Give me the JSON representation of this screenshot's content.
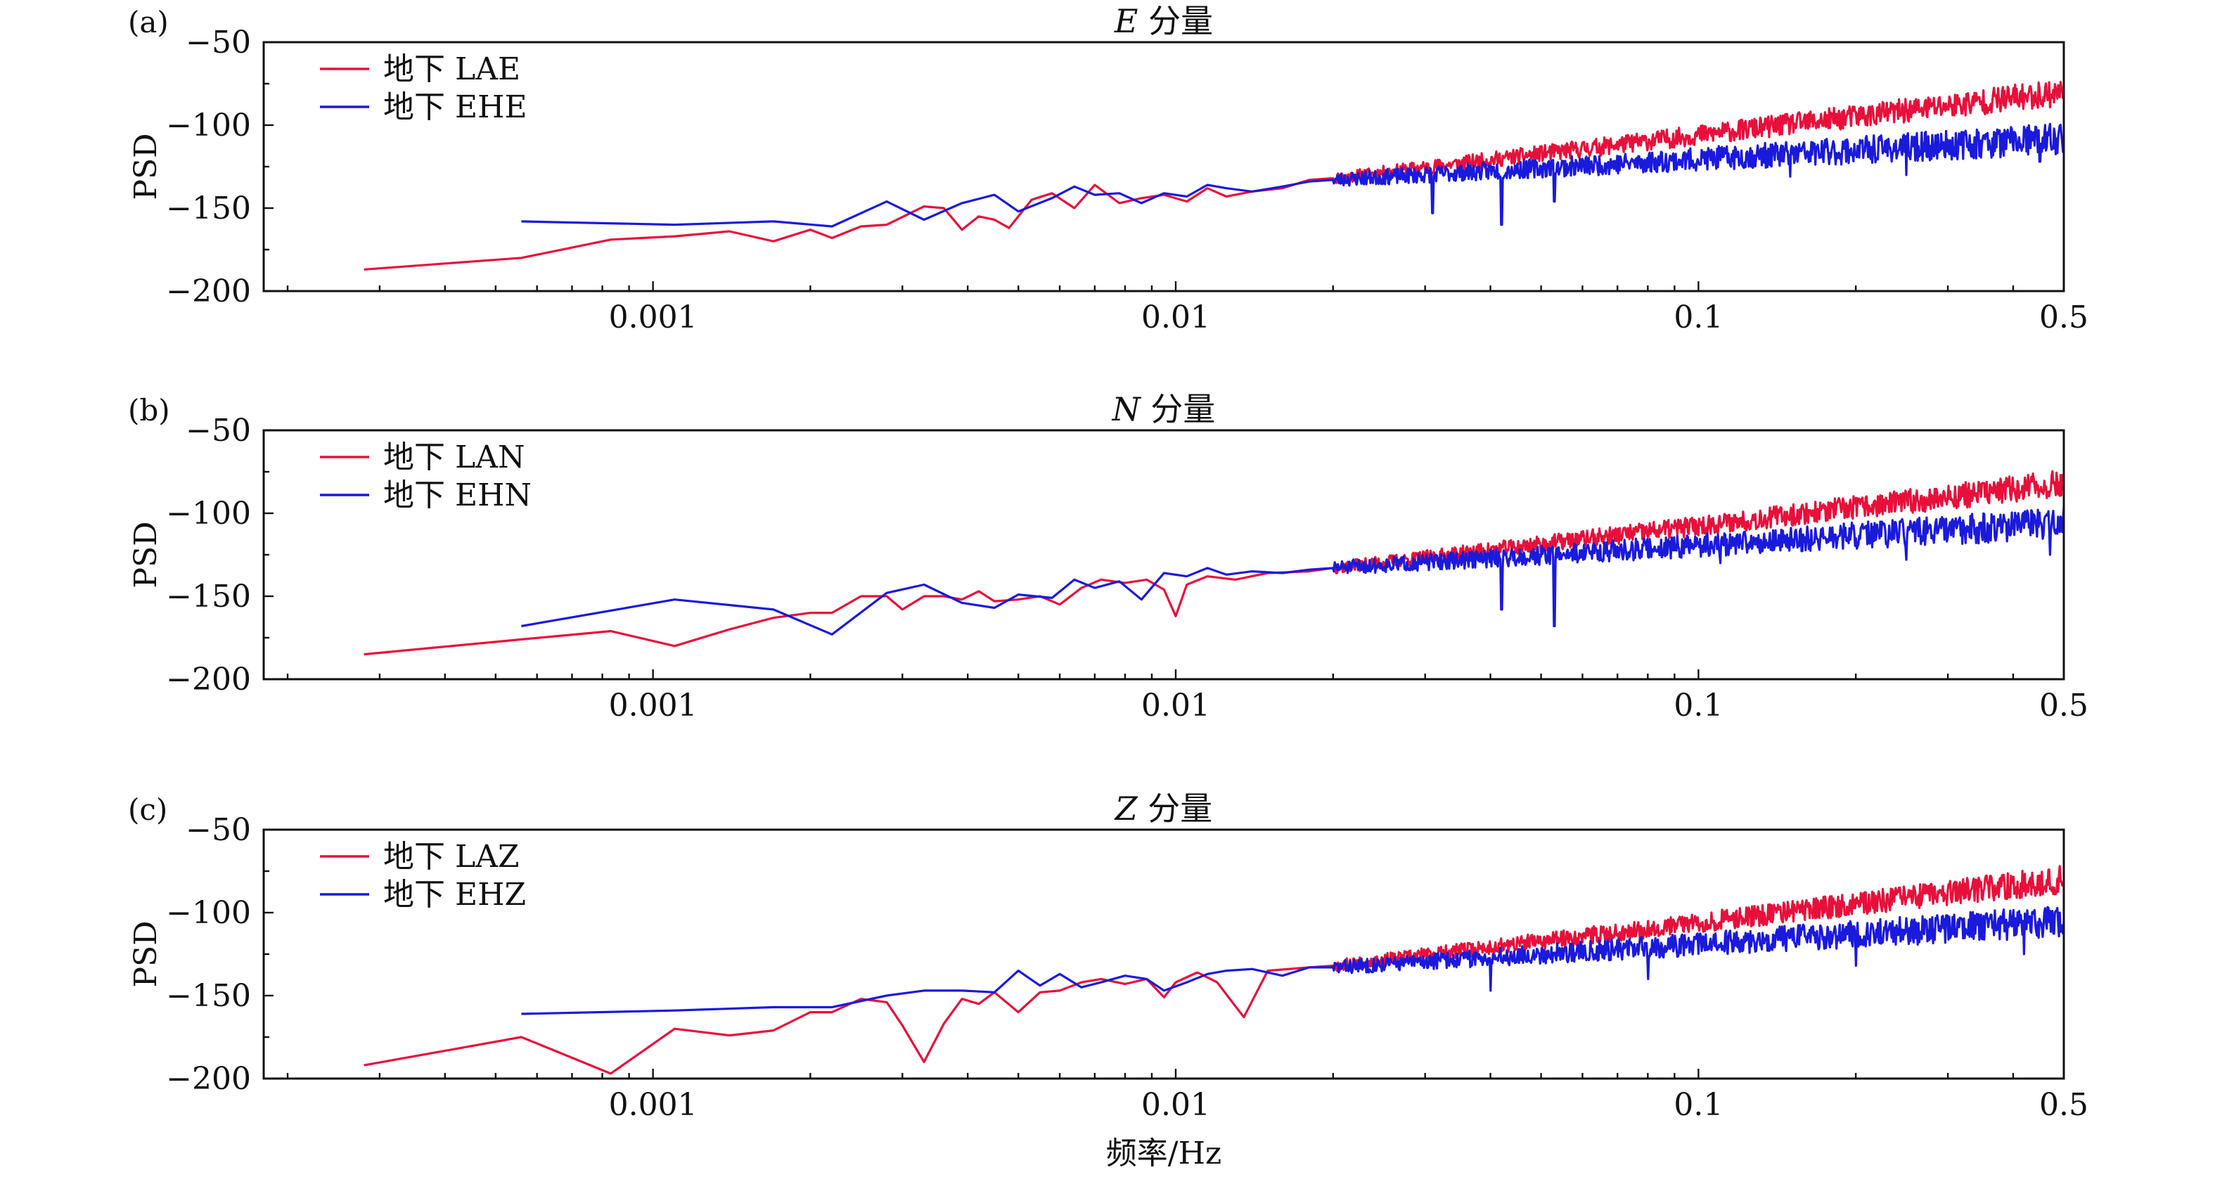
{
  "figure": {
    "xlabel": "频率/Hz"
  },
  "chart_data": [
    {
      "type": "line",
      "panel_letter": "(a)",
      "title_italic": "E",
      "title_rest": " 分量",
      "xlabel": "",
      "ylabel": "PSD",
      "xscale": "log",
      "xlim": [
        0.00018,
        0.5
      ],
      "ylim": [
        -200,
        -50
      ],
      "xtick_labels": [
        "0.001",
        "0.01",
        "0.1",
        "0.5"
      ],
      "xticks": [
        0.001,
        0.01,
        0.1,
        0.5
      ],
      "yticks": [
        -50,
        -100,
        -150,
        -200
      ],
      "ytick_labels": [
        "−50",
        "−100",
        "−150",
        "−200"
      ],
      "legend_position": "top-left",
      "series": [
        {
          "name": "地下 LAE",
          "color": "#e8103a",
          "x": [
            0.00028,
            0.00056,
            0.00083,
            0.0011,
            0.0014,
            0.0017,
            0.002,
            0.0022,
            0.0025,
            0.0028,
            0.0033,
            0.0036,
            0.0039,
            0.0042,
            0.0045,
            0.0048,
            0.0053,
            0.0058,
            0.0064,
            0.007,
            0.0078,
            0.0086,
            0.0095,
            0.0105,
            0.0115,
            0.0125,
            0.014,
            0.016,
            0.018,
            0.02
          ],
          "y": [
            -187,
            -180,
            -169,
            -167,
            -164,
            -170,
            -163,
            -168,
            -161,
            -160,
            -149,
            -150,
            -163,
            -155,
            -157,
            -162,
            -145,
            -141,
            -150,
            -136,
            -147,
            -144,
            -142,
            -146,
            -138,
            -143,
            -140,
            -138,
            -133,
            -132
          ],
          "noise_from": 0.02,
          "noise_to": 0.5,
          "noise_y_start": -132,
          "noise_y_end": -80,
          "noise_amp": 6,
          "seed": 11
        },
        {
          "name": "地下 EHE",
          "color": "#1a1adc",
          "x": [
            0.00056,
            0.0011,
            0.0017,
            0.0022,
            0.0028,
            0.0033,
            0.0039,
            0.0045,
            0.005,
            0.0058,
            0.0064,
            0.007,
            0.0078,
            0.0086,
            0.0095,
            0.0105,
            0.0115,
            0.0125,
            0.014,
            0.016,
            0.018,
            0.02
          ],
          "y": [
            -158,
            -160,
            -158,
            -161,
            -146,
            -157,
            -147,
            -142,
            -152,
            -144,
            -137,
            -142,
            -141,
            -147,
            -141,
            -143,
            -136,
            -138,
            -140,
            -137,
            -134,
            -133
          ],
          "noise_from": 0.02,
          "noise_to": 0.5,
          "noise_y_start": -133,
          "noise_y_end": -108,
          "noise_amp": 7,
          "seed": 23,
          "spikes": [
            [
              0.031,
              -153
            ],
            [
              0.042,
              -160
            ],
            [
              0.053,
              -146
            ],
            [
              0.15,
              -131
            ],
            [
              0.25,
              -130
            ],
            [
              0.45,
              -122
            ]
          ]
        }
      ]
    },
    {
      "type": "line",
      "panel_letter": "(b)",
      "title_italic": "N",
      "title_rest": " 分量",
      "xlabel": "",
      "ylabel": "PSD",
      "xscale": "log",
      "xlim": [
        0.00018,
        0.5
      ],
      "ylim": [
        -200,
        -50
      ],
      "xtick_labels": [
        "0.001",
        "0.01",
        "0.1",
        "0.5"
      ],
      "xticks": [
        0.001,
        0.01,
        0.1,
        0.5
      ],
      "yticks": [
        -50,
        -100,
        -150,
        -200
      ],
      "ytick_labels": [
        "−50",
        "−100",
        "−150",
        "−200"
      ],
      "legend_position": "top-left",
      "series": [
        {
          "name": "地下 LAN",
          "color": "#e8103a",
          "x": [
            0.00028,
            0.00056,
            0.00083,
            0.0011,
            0.0014,
            0.0017,
            0.002,
            0.0022,
            0.0025,
            0.0028,
            0.003,
            0.0033,
            0.0036,
            0.0039,
            0.0042,
            0.0045,
            0.005,
            0.0055,
            0.006,
            0.0066,
            0.0072,
            0.008,
            0.0088,
            0.0095,
            0.01,
            0.0105,
            0.0115,
            0.013,
            0.015,
            0.018,
            0.02
          ],
          "y": [
            -185,
            -176,
            -171,
            -180,
            -170,
            -163,
            -160,
            -160,
            -150,
            -150,
            -158,
            -150,
            -150,
            -152,
            -147,
            -153,
            -152,
            -150,
            -155,
            -145,
            -140,
            -142,
            -140,
            -146,
            -162,
            -143,
            -138,
            -140,
            -136,
            -135,
            -133
          ],
          "noise_from": 0.02,
          "noise_to": 0.5,
          "noise_y_start": -133,
          "noise_y_end": -82,
          "noise_amp": 6,
          "seed": 37
        },
        {
          "name": "地下 EHN",
          "color": "#1a1adc",
          "x": [
            0.00056,
            0.0011,
            0.0017,
            0.0022,
            0.0028,
            0.0033,
            0.0039,
            0.0045,
            0.005,
            0.0058,
            0.0064,
            0.007,
            0.0078,
            0.0086,
            0.0095,
            0.0105,
            0.0115,
            0.0125,
            0.014,
            0.016,
            0.018,
            0.02
          ],
          "y": [
            -168,
            -152,
            -158,
            -173,
            -148,
            -143,
            -154,
            -157,
            -149,
            -151,
            -140,
            -145,
            -141,
            -152,
            -136,
            -138,
            -133,
            -137,
            -135,
            -136,
            -134,
            -133
          ],
          "noise_from": 0.02,
          "noise_to": 0.5,
          "noise_y_start": -133,
          "noise_y_end": -106,
          "noise_amp": 7,
          "seed": 51,
          "spikes": [
            [
              0.042,
              -158
            ],
            [
              0.053,
              -168
            ],
            [
              0.11,
              -130
            ],
            [
              0.25,
              -128
            ],
            [
              0.47,
              -125
            ]
          ]
        }
      ]
    },
    {
      "type": "line",
      "panel_letter": "(c)",
      "title_italic": "Z",
      "title_rest": " 分量",
      "xlabel": "频率/Hz",
      "ylabel": "PSD",
      "xscale": "log",
      "xlim": [
        0.00018,
        0.5
      ],
      "ylim": [
        -200,
        -50
      ],
      "xtick_labels": [
        "0.001",
        "0.01",
        "0.1",
        "0.5"
      ],
      "xticks": [
        0.001,
        0.01,
        0.1,
        0.5
      ],
      "yticks": [
        -50,
        -100,
        -150,
        -200
      ],
      "ytick_labels": [
        "−50",
        "−100",
        "−150",
        "−200"
      ],
      "legend_position": "top-left",
      "series": [
        {
          "name": "地下 LAZ",
          "color": "#e8103a",
          "x": [
            0.00028,
            0.00056,
            0.00083,
            0.0011,
            0.0014,
            0.0017,
            0.002,
            0.0022,
            0.0025,
            0.0028,
            0.003,
            0.0033,
            0.0036,
            0.0039,
            0.0042,
            0.0045,
            0.005,
            0.0055,
            0.006,
            0.0066,
            0.0072,
            0.008,
            0.0088,
            0.0095,
            0.01,
            0.011,
            0.012,
            0.0135,
            0.015,
            0.018,
            0.02
          ],
          "y": [
            -192,
            -175,
            -197,
            -170,
            -174,
            -171,
            -160,
            -160,
            -152,
            -154,
            -168,
            -190,
            -167,
            -152,
            -155,
            -148,
            -160,
            -148,
            -147,
            -142,
            -140,
            -143,
            -140,
            -151,
            -142,
            -136,
            -142,
            -163,
            -135,
            -133,
            -132
          ],
          "noise_from": 0.02,
          "noise_to": 0.5,
          "noise_y_start": -132,
          "noise_y_end": -80,
          "noise_amp": 6,
          "seed": 67
        },
        {
          "name": "地下 EHZ",
          "color": "#1a1adc",
          "x": [
            0.00056,
            0.0011,
            0.0017,
            0.0022,
            0.0028,
            0.0033,
            0.0039,
            0.0045,
            0.005,
            0.0055,
            0.006,
            0.0066,
            0.0072,
            0.008,
            0.0088,
            0.0095,
            0.0105,
            0.0115,
            0.0125,
            0.014,
            0.016,
            0.018,
            0.02
          ],
          "y": [
            -161,
            -159,
            -157,
            -157,
            -150,
            -147,
            -147,
            -148,
            -135,
            -144,
            -137,
            -145,
            -142,
            -138,
            -140,
            -147,
            -142,
            -137,
            -135,
            -134,
            -138,
            -133,
            -133
          ],
          "noise_from": 0.02,
          "noise_to": 0.5,
          "noise_y_start": -133,
          "noise_y_end": -105,
          "noise_amp": 7,
          "seed": 83,
          "spikes": [
            [
              0.04,
              -147
            ],
            [
              0.08,
              -140
            ],
            [
              0.2,
              -132
            ],
            [
              0.42,
              -125
            ]
          ]
        }
      ]
    }
  ]
}
